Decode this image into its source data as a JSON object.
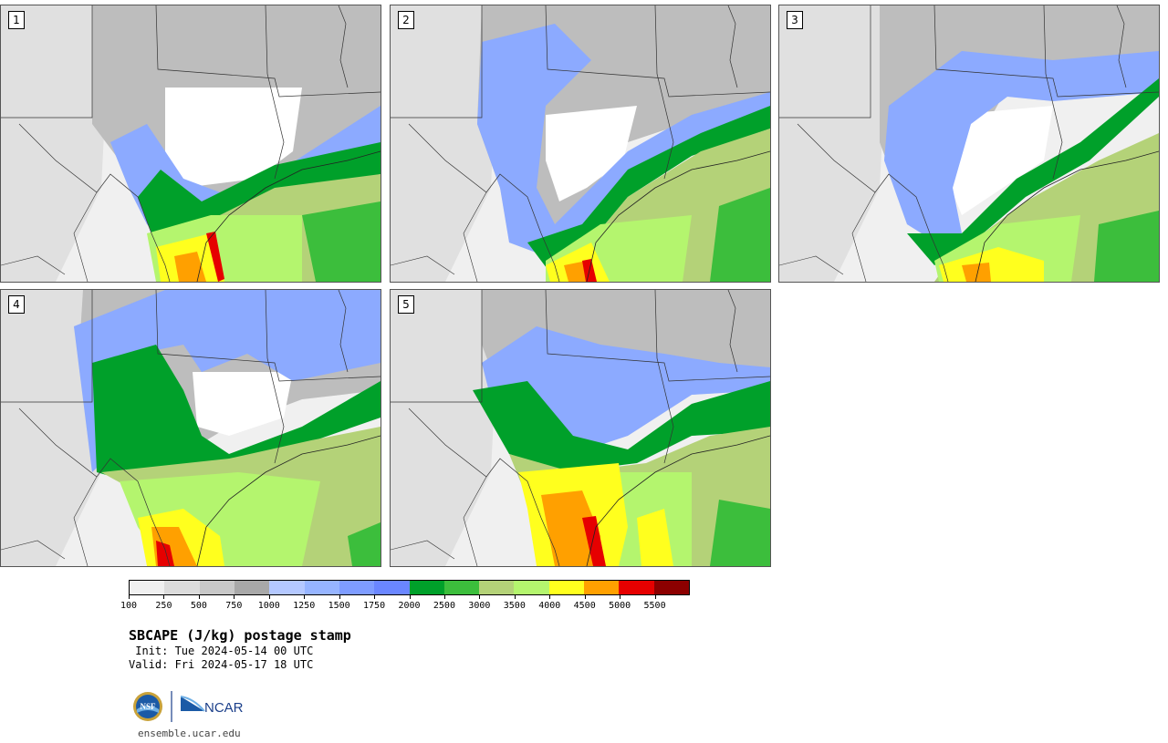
{
  "panels": [
    {
      "number": "1",
      "member": 1
    },
    {
      "number": "2",
      "member": 2
    },
    {
      "number": "3",
      "member": 3
    },
    {
      "number": "4",
      "member": 4
    },
    {
      "number": "5",
      "member": 5
    }
  ],
  "colorbar": {
    "labels": [
      "100",
      "250",
      "500",
      "750",
      "1000",
      "1250",
      "1500",
      "1750",
      "2000",
      "2500",
      "3000",
      "3500",
      "4000",
      "4500",
      "5000",
      "5500"
    ],
    "colors": [
      "#f0f0f0",
      "#dcdcdc",
      "#c8c8c8",
      "#a8a8a8",
      "#b4c8ff",
      "#96b4ff",
      "#7e9cff",
      "#6a86ff",
      "#00a02a",
      "#3cbe3c",
      "#b4d278",
      "#b4f56e",
      "#ffff1e",
      "#ffa000",
      "#e60000",
      "#8c0000"
    ]
  },
  "title": "SBCAPE (J/kg) postage stamp",
  "init": " Init: Tue 2024-05-14 00 UTC",
  "valid": "Valid: Fri 2024-05-17 18 UTC",
  "logos": {
    "nsf": "NSF",
    "ncar": "NCAR"
  },
  "site": "ensemble.ucar.edu"
}
